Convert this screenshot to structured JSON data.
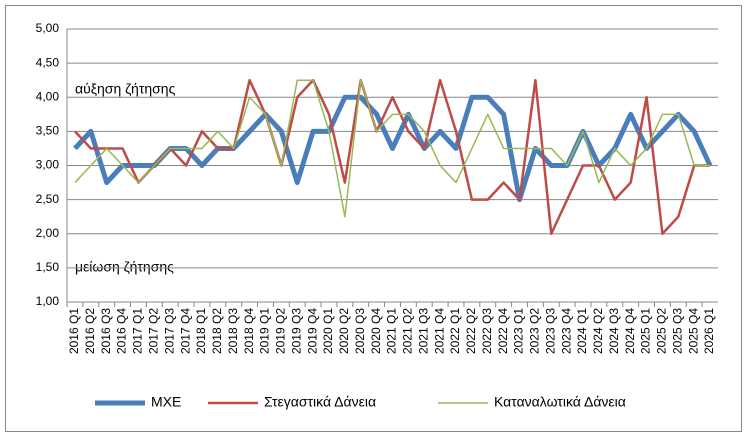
{
  "chart_data": {
    "type": "line",
    "categories": [
      "2016 Q1",
      "2016 Q2",
      "2016 Q3",
      "2016 Q4",
      "2017 Q1",
      "2017 Q2",
      "2017 Q3",
      "2017 Q4",
      "2018 Q1",
      "2018 Q2",
      "2018 Q3",
      "2018 Q4",
      "2019 Q1",
      "2019 Q2",
      "2019 Q3",
      "2019 Q4",
      "2020 Q1",
      "2020 Q2",
      "2020 Q3",
      "2020 Q4",
      "2021 Q1",
      "2021 Q2",
      "2021 Q3",
      "2021 Q4",
      "2022 Q1",
      "2022 Q2",
      "2022 Q3",
      "2022 Q4",
      "2023 Q1",
      "2023 Q2",
      "2023 Q3",
      "2023 Q4",
      "2024 Q1",
      "2024 Q2",
      "2024 Q3",
      "2024 Q4",
      "2025 Q1",
      "2025 Q2",
      "2025 Q3",
      "2025 Q4",
      "2026 Q1"
    ],
    "series": [
      {
        "name": "ΜΧΕ",
        "color": "#4a7ebb",
        "values": [
          3.25,
          3.5,
          2.75,
          3.0,
          3.0,
          3.0,
          3.25,
          3.25,
          3.0,
          3.25,
          3.25,
          3.5,
          3.75,
          3.5,
          2.75,
          3.5,
          3.5,
          4.0,
          4.0,
          3.75,
          3.25,
          3.75,
          3.25,
          3.5,
          3.25,
          4.0,
          4.0,
          3.75,
          2.5,
          3.25,
          3.0,
          3.0,
          3.5,
          3.0,
          3.25,
          3.75,
          3.25,
          3.5,
          3.75,
          3.5,
          3.0
        ]
      },
      {
        "name": "Στεγαστικά Δάνεια",
        "color": "#be4b48",
        "values": [
          3.5,
          3.25,
          3.25,
          3.25,
          2.75,
          3.0,
          3.25,
          3.0,
          3.5,
          3.25,
          3.25,
          4.25,
          3.75,
          3.0,
          4.0,
          4.25,
          3.75,
          2.75,
          4.25,
          3.5,
          4.0,
          3.5,
          3.25,
          4.25,
          3.5,
          2.5,
          2.5,
          2.75,
          2.5,
          4.25,
          2.0,
          2.5,
          3.0,
          3.0,
          2.5,
          2.75,
          4.0,
          2.0,
          2.25,
          3.0,
          3.0
        ]
      },
      {
        "name": "Καταναλωτικά Δάνεια",
        "color": "#98b954",
        "values": [
          2.75,
          3.0,
          3.25,
          3.0,
          2.75,
          3.0,
          3.25,
          3.25,
          3.25,
          3.5,
          3.25,
          4.0,
          3.75,
          3.0,
          4.25,
          4.25,
          3.5,
          2.25,
          4.25,
          3.5,
          3.75,
          3.75,
          3.5,
          3.0,
          2.75,
          3.25,
          3.75,
          3.25,
          3.25,
          3.25,
          3.25,
          3.0,
          3.5,
          2.75,
          3.25,
          3.0,
          3.25,
          3.75,
          3.75,
          3.0,
          3.0
        ]
      }
    ],
    "ylim": [
      1,
      5
    ],
    "yticks": [
      {
        "value": 1,
        "label": "1,00"
      },
      {
        "value": 1.5,
        "label": "1,50"
      },
      {
        "value": 2,
        "label": "2,00"
      },
      {
        "value": 2.5,
        "label": "2,50"
      },
      {
        "value": 3,
        "label": "3,00"
      },
      {
        "value": 3.5,
        "label": "3,50"
      },
      {
        "value": 4,
        "label": "4,00"
      },
      {
        "value": 4.5,
        "label": "4,50"
      },
      {
        "value": 5,
        "label": "5,00"
      }
    ],
    "grid": true,
    "legend": "bottom",
    "annotations": [
      "αύξηση ζήτησης",
      "μείωση ζήτησης"
    ]
  }
}
